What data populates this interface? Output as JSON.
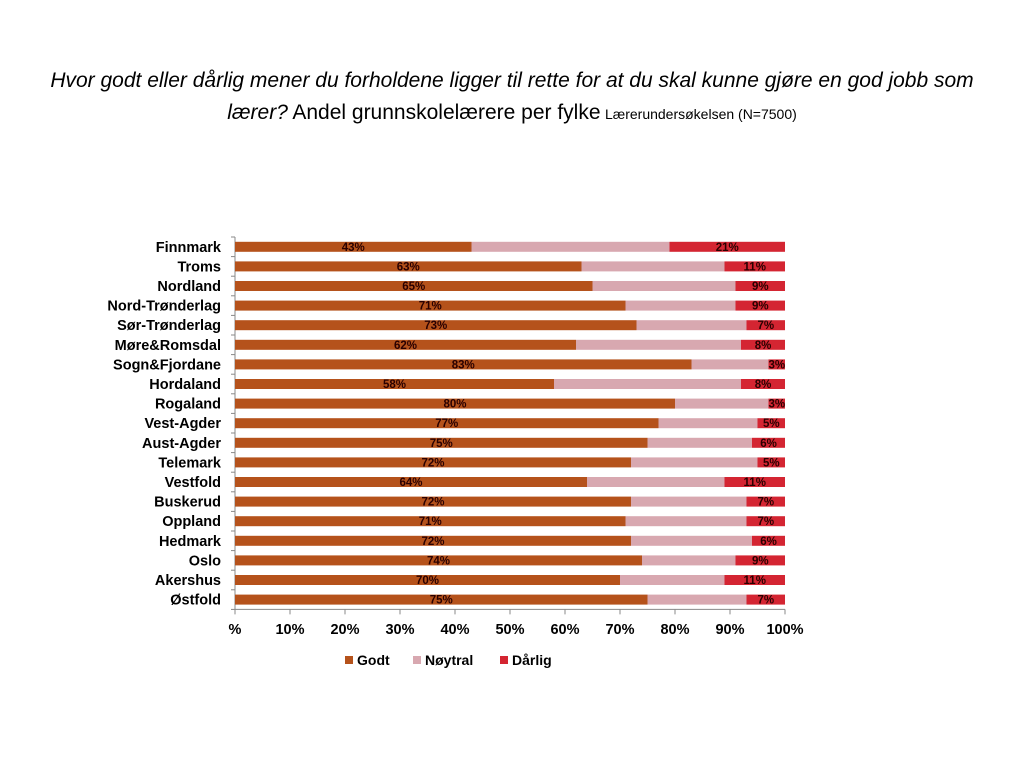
{
  "slide": {
    "title_question": "Hvor godt eller dårlig mener du forholdene ligger til rette for at du skal kunne gjøre en god jobb som lærer?",
    "title_main": "Andel grunnskolelærere per fylke",
    "title_source": "Lærerundersøkelsen (N=7500)"
  },
  "chart_data": {
    "type": "bar",
    "orientation": "horizontal",
    "stacked": "percent",
    "categories": [
      "Finnmark",
      "Troms",
      "Nordland",
      "Nord-Trønderlag",
      "Sør-Trønderlag",
      "Møre&Romsdal",
      "Sogn&Fjordane",
      "Hordaland",
      "Rogaland",
      "Vest-Agder",
      "Aust-Agder",
      "Telemark",
      "Vestfold",
      "Buskerud",
      "Oppland",
      "Hedmark",
      "Oslo",
      "Akershus",
      "Østfold"
    ],
    "series": [
      {
        "name": "Godt",
        "color": "#b5521b",
        "values": [
          43,
          63,
          65,
          71,
          73,
          62,
          83,
          58,
          80,
          77,
          75,
          72,
          64,
          72,
          71,
          72,
          74,
          70,
          75
        ],
        "labels": [
          "43%",
          "63%",
          "65%",
          "71%",
          "73%",
          "62%",
          "83%",
          "58%",
          "80%",
          "77%",
          "75%",
          "72%",
          "64%",
          "72%",
          "71%",
          "72%",
          "74%",
          "70%",
          "75%"
        ]
      },
      {
        "name": "Nøytral",
        "color": "#d8a8b0",
        "values": [
          36,
          26,
          26,
          20,
          20,
          30,
          14,
          34,
          17,
          18,
          19,
          23,
          25,
          21,
          22,
          22,
          17,
          19,
          18
        ],
        "labels": []
      },
      {
        "name": "Dårlig",
        "color": "#d42532",
        "values": [
          21,
          11,
          9,
          9,
          7,
          8,
          3,
          8,
          3,
          5,
          6,
          5,
          11,
          7,
          7,
          6,
          9,
          11,
          7
        ],
        "labels": [
          "21%",
          "11%",
          "9%",
          "9%",
          "7%",
          "8%",
          "3%",
          "8%",
          "3%",
          "5%",
          "6%",
          "5%",
          "11%",
          "7%",
          "7%",
          "6%",
          "9%",
          "11%",
          "7%"
        ]
      }
    ],
    "x_ticks": [
      "%",
      "10%",
      "20%",
      "30%",
      "40%",
      "50%",
      "60%",
      "70%",
      "80%",
      "90%",
      "100%"
    ],
    "xlim": [
      0,
      100
    ],
    "legend": {
      "position": "bottom",
      "entries": [
        "Godt",
        "Nøytral",
        "Dårlig"
      ]
    },
    "grid": false
  }
}
